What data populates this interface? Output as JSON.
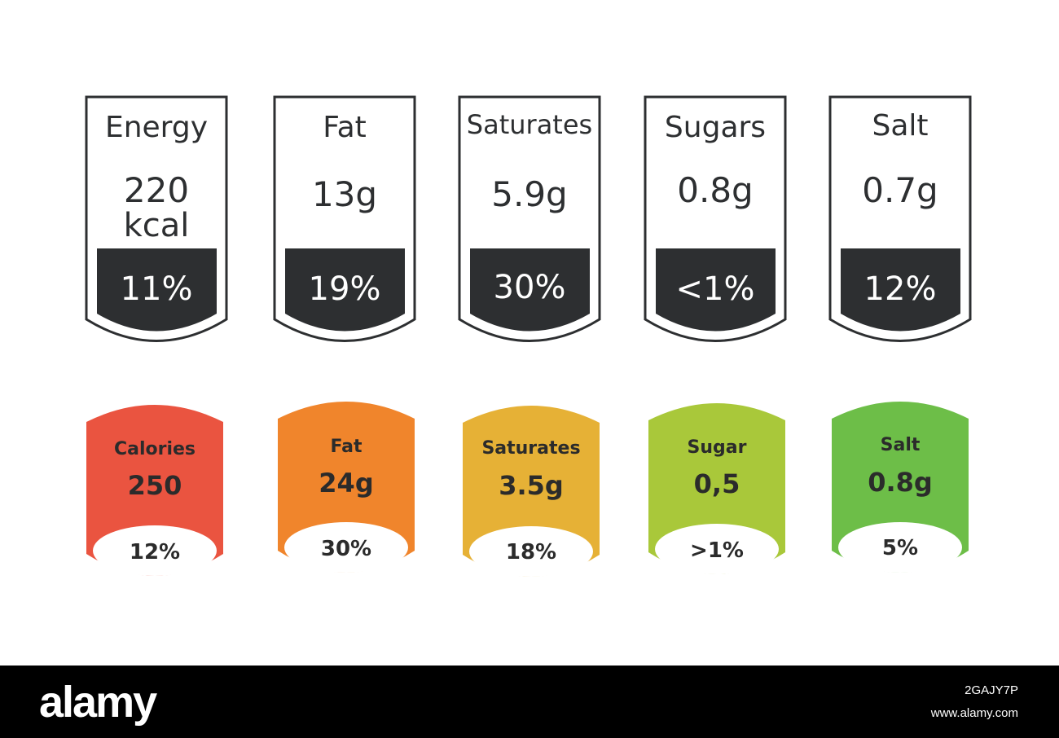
{
  "colors": {
    "outline": "#2d2f31",
    "dark_fill": "#2d2f31",
    "tile_text": "#2b2b2b",
    "calories": "#ea5440",
    "fat": "#f0852c",
    "saturates": "#e6b136",
    "sugar": "#a9c83a",
    "salt": "#6dbe48"
  },
  "outline_labels": [
    {
      "name": "Energy",
      "amount": "220",
      "unit": "kcal",
      "percent": "11%"
    },
    {
      "name": "Fat",
      "amount": "13g",
      "percent": "19%"
    },
    {
      "name": "Saturates",
      "amount": "5.9g",
      "percent": "30%"
    },
    {
      "name": "Sugars",
      "amount": "0.8g",
      "percent": "<1%"
    },
    {
      "name": "Salt",
      "amount": "0.7g",
      "percent": "12%"
    }
  ],
  "color_labels": [
    {
      "name": "Calories",
      "amount": "250",
      "percent": "12%",
      "color": "#ea5440"
    },
    {
      "name": "Fat",
      "amount": "24g",
      "percent": "30%",
      "color": "#f0852c"
    },
    {
      "name": "Saturates",
      "amount": "3.5g",
      "percent": "18%",
      "color": "#e6b136"
    },
    {
      "name": "Sugar",
      "amount": "0,5",
      "percent": ">1%",
      "color": "#a9c83a"
    },
    {
      "name": "Salt",
      "amount": "0.8g",
      "percent": "5%",
      "color": "#6dbe48"
    }
  ],
  "footer": {
    "logo": "alamy",
    "image_id": "2GAJY7P",
    "url": "www.alamy.com"
  }
}
